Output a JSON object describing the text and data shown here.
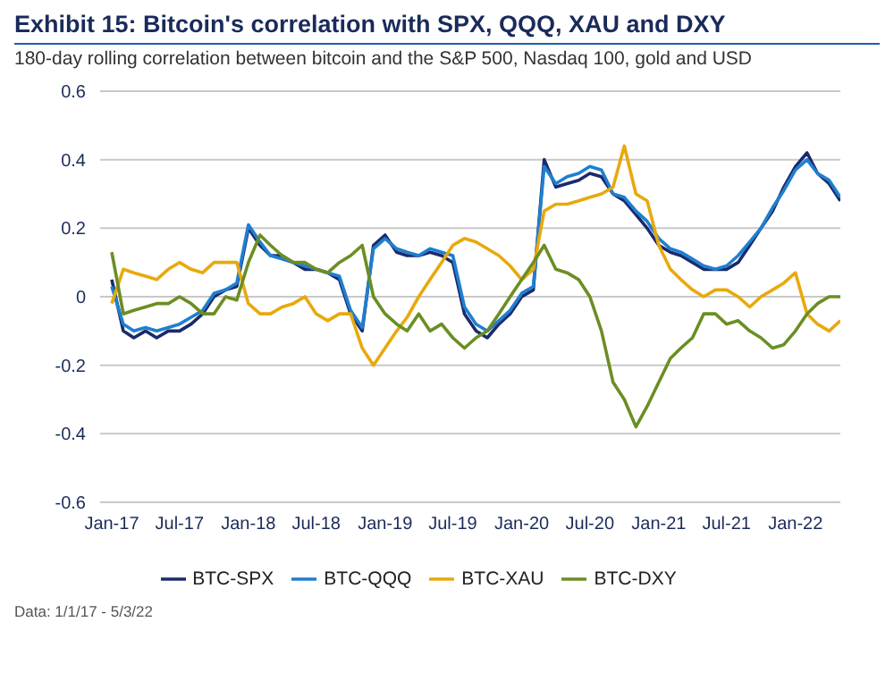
{
  "chart_data": {
    "type": "line",
    "title": "Exhibit 15: Bitcoin's correlation with SPX, QQQ, XAU and DXY",
    "subtitle": "180-day rolling correlation between bitcoin and the S&P 500, Nasdaq 100, gold and USD",
    "x": [
      "2017-01",
      "2017-02",
      "2017-03",
      "2017-04",
      "2017-05",
      "2017-06",
      "2017-07",
      "2017-08",
      "2017-09",
      "2017-10",
      "2017-11",
      "2017-12",
      "2018-01",
      "2018-02",
      "2018-03",
      "2018-04",
      "2018-05",
      "2018-06",
      "2018-07",
      "2018-08",
      "2018-09",
      "2018-10",
      "2018-11",
      "2018-12",
      "2019-01",
      "2019-02",
      "2019-03",
      "2019-04",
      "2019-05",
      "2019-06",
      "2019-07",
      "2019-08",
      "2019-09",
      "2019-10",
      "2019-11",
      "2019-12",
      "2020-01",
      "2020-02",
      "2020-03",
      "2020-04",
      "2020-05",
      "2020-06",
      "2020-07",
      "2020-08",
      "2020-09",
      "2020-10",
      "2020-11",
      "2020-12",
      "2021-01",
      "2021-02",
      "2021-03",
      "2021-04",
      "2021-05",
      "2021-06",
      "2021-07",
      "2021-08",
      "2021-09",
      "2021-10",
      "2021-11",
      "2021-12",
      "2022-01",
      "2022-02",
      "2022-03",
      "2022-04",
      "2022-05"
    ],
    "series": [
      {
        "name": "BTC-SPX",
        "color": "#1b2a6b",
        "values": [
          0.05,
          -0.1,
          -0.12,
          -0.1,
          -0.12,
          -0.1,
          -0.1,
          -0.08,
          -0.05,
          0.0,
          0.02,
          0.03,
          0.2,
          0.15,
          0.12,
          0.12,
          0.1,
          0.08,
          0.08,
          0.07,
          0.05,
          -0.05,
          -0.1,
          0.15,
          0.18,
          0.13,
          0.12,
          0.12,
          0.13,
          0.12,
          0.1,
          -0.05,
          -0.1,
          -0.12,
          -0.08,
          -0.05,
          0.0,
          0.02,
          0.4,
          0.32,
          0.33,
          0.34,
          0.36,
          0.35,
          0.3,
          0.28,
          0.24,
          0.2,
          0.15,
          0.13,
          0.12,
          0.1,
          0.08,
          0.08,
          0.08,
          0.1,
          0.15,
          0.2,
          0.25,
          0.32,
          0.38,
          0.42,
          0.36,
          0.33,
          0.28
        ]
      },
      {
        "name": "BTC-QQQ",
        "color": "#1f7fd0",
        "values": [
          0.03,
          -0.08,
          -0.1,
          -0.09,
          -0.1,
          -0.09,
          -0.08,
          -0.06,
          -0.04,
          0.01,
          0.02,
          0.04,
          0.21,
          0.16,
          0.12,
          0.11,
          0.1,
          0.09,
          0.08,
          0.07,
          0.06,
          -0.04,
          -0.09,
          0.14,
          0.17,
          0.14,
          0.13,
          0.12,
          0.14,
          0.13,
          0.12,
          -0.03,
          -0.08,
          -0.1,
          -0.07,
          -0.04,
          0.01,
          0.03,
          0.38,
          0.33,
          0.35,
          0.36,
          0.38,
          0.37,
          0.3,
          0.29,
          0.25,
          0.22,
          0.17,
          0.14,
          0.13,
          0.11,
          0.09,
          0.08,
          0.09,
          0.12,
          0.16,
          0.2,
          0.26,
          0.31,
          0.37,
          0.4,
          0.36,
          0.34,
          0.29
        ]
      },
      {
        "name": "BTC-XAU",
        "color": "#e8a90d",
        "values": [
          -0.02,
          0.08,
          0.07,
          0.06,
          0.05,
          0.08,
          0.1,
          0.08,
          0.07,
          0.1,
          0.1,
          0.1,
          -0.02,
          -0.05,
          -0.05,
          -0.03,
          -0.02,
          0.0,
          -0.05,
          -0.07,
          -0.05,
          -0.05,
          -0.15,
          -0.2,
          -0.15,
          -0.1,
          -0.06,
          0.0,
          0.05,
          0.1,
          0.15,
          0.17,
          0.16,
          0.14,
          0.12,
          0.09,
          0.05,
          0.08,
          0.25,
          0.27,
          0.27,
          0.28,
          0.29,
          0.3,
          0.32,
          0.44,
          0.3,
          0.28,
          0.15,
          0.08,
          0.05,
          0.02,
          0.0,
          0.02,
          0.02,
          0.0,
          -0.03,
          0.0,
          0.02,
          0.04,
          0.07,
          -0.05,
          -0.08,
          -0.1,
          -0.07
        ]
      },
      {
        "name": "BTC-DXY",
        "color": "#6b8e23",
        "values": [
          0.13,
          -0.05,
          -0.04,
          -0.03,
          -0.02,
          -0.02,
          0.0,
          -0.02,
          -0.05,
          -0.05,
          0.0,
          -0.01,
          0.1,
          0.18,
          0.15,
          0.12,
          0.1,
          0.1,
          0.08,
          0.07,
          0.1,
          0.12,
          0.15,
          0.0,
          -0.05,
          -0.08,
          -0.1,
          -0.05,
          -0.1,
          -0.08,
          -0.12,
          -0.15,
          -0.12,
          -0.1,
          -0.05,
          0.0,
          0.05,
          0.1,
          0.15,
          0.08,
          0.07,
          0.05,
          0.0,
          -0.1,
          -0.25,
          -0.3,
          -0.38,
          -0.32,
          -0.25,
          -0.18,
          -0.15,
          -0.12,
          -0.05,
          -0.05,
          -0.08,
          -0.07,
          -0.1,
          -0.12,
          -0.15,
          -0.14,
          -0.1,
          -0.05,
          -0.02,
          0.0,
          0.0
        ]
      }
    ],
    "xlim": [
      "2016-12",
      "2022-05"
    ],
    "xticks": [
      {
        "value": "2017-01",
        "label": "Jan-17"
      },
      {
        "value": "2017-07",
        "label": "Jul-17"
      },
      {
        "value": "2018-01",
        "label": "Jan-18"
      },
      {
        "value": "2018-07",
        "label": "Jul-18"
      },
      {
        "value": "2019-01",
        "label": "Jan-19"
      },
      {
        "value": "2019-07",
        "label": "Jul-19"
      },
      {
        "value": "2020-01",
        "label": "Jan-20"
      },
      {
        "value": "2020-07",
        "label": "Jul-20"
      },
      {
        "value": "2021-01",
        "label": "Jan-21"
      },
      {
        "value": "2021-07",
        "label": "Jul-21"
      },
      {
        "value": "2022-01",
        "label": "Jan-22"
      }
    ],
    "ylim": [
      -0.6,
      0.6
    ],
    "yticks": [
      -0.6,
      -0.4,
      -0.2,
      0,
      0.2,
      0.4,
      0.6
    ],
    "grid": "y",
    "legend": "bottom",
    "marker": "none",
    "line_style": "solid",
    "annotations": [
      "Data: 1/1/17 - 5/3/22"
    ]
  }
}
